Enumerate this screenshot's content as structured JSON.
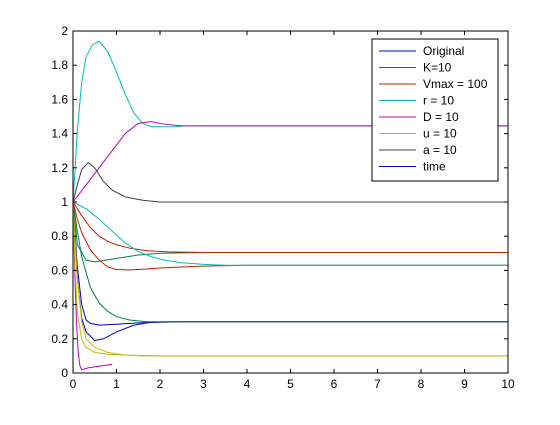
{
  "chart_data": {
    "type": "line",
    "title": "",
    "xlabel": "",
    "ylabel": "",
    "xlim": [
      0,
      10
    ],
    "ylim": [
      0,
      2
    ],
    "grid": false,
    "legend_position": "top-right",
    "x_ticks": [
      "0",
      "1",
      "2",
      "3",
      "4",
      "5",
      "6",
      "7",
      "8",
      "9",
      "10"
    ],
    "y_ticks": [
      "0",
      "0.2",
      "0.4",
      "0.6",
      "0.8",
      "1",
      "1.2",
      "1.4",
      "1.6",
      "1.8",
      "2"
    ],
    "series": [
      {
        "name": "Original",
        "color": "#0000bf",
        "curves": [
          [
            [
              0,
              1
            ],
            [
              0.1,
              0.62
            ],
            [
              0.2,
              0.4
            ],
            [
              0.3,
              0.31
            ],
            [
              0.4,
              0.29
            ],
            [
              0.6,
              0.28
            ],
            [
              1.0,
              0.285
            ],
            [
              1.5,
              0.293
            ],
            [
              2.0,
              0.297
            ],
            [
              2.5,
              0.3
            ],
            [
              10,
              0.3
            ]
          ],
          [
            [
              0,
              1
            ],
            [
              0.1,
              0.55
            ],
            [
              0.2,
              0.32
            ],
            [
              0.3,
              0.24
            ],
            [
              0.5,
              0.19
            ],
            [
              0.7,
              0.2
            ],
            [
              1.0,
              0.24
            ],
            [
              1.4,
              0.28
            ],
            [
              1.8,
              0.297
            ],
            [
              2.2,
              0.3
            ],
            [
              10,
              0.3
            ]
          ]
        ]
      },
      {
        "name": "K=10",
        "color": "#00803f",
        "curves": [
          [
            [
              0,
              1
            ],
            [
              0.1,
              0.75
            ],
            [
              0.3,
              0.66
            ],
            [
              0.5,
              0.65
            ],
            [
              1.0,
              0.67
            ],
            [
              1.5,
              0.69
            ],
            [
              2.0,
              0.7
            ],
            [
              3.0,
              0.705
            ],
            [
              10,
              0.705
            ]
          ],
          [
            [
              0,
              1
            ],
            [
              0.1,
              0.83
            ],
            [
              0.2,
              0.68
            ],
            [
              0.4,
              0.5
            ],
            [
              0.6,
              0.41
            ],
            [
              0.8,
              0.36
            ],
            [
              1.0,
              0.33
            ],
            [
              1.3,
              0.31
            ],
            [
              1.7,
              0.3
            ],
            [
              2.2,
              0.3
            ],
            [
              10,
              0.3
            ]
          ]
        ]
      },
      {
        "name": "Vmax = 100",
        "color": "#bf2000",
        "curves": [
          [
            [
              0,
              1
            ],
            [
              0.2,
              0.92
            ],
            [
              0.4,
              0.85
            ],
            [
              0.6,
              0.8
            ],
            [
              0.8,
              0.77
            ],
            [
              1.0,
              0.75
            ],
            [
              1.3,
              0.73
            ],
            [
              1.7,
              0.715
            ],
            [
              2.2,
              0.708
            ],
            [
              3.0,
              0.705
            ],
            [
              10,
              0.705
            ]
          ],
          [
            [
              0,
              1
            ],
            [
              0.1,
              0.9
            ],
            [
              0.2,
              0.82
            ],
            [
              0.4,
              0.72
            ],
            [
              0.6,
              0.66
            ],
            [
              0.8,
              0.62
            ],
            [
              1.0,
              0.605
            ],
            [
              1.3,
              0.603
            ],
            [
              1.6,
              0.607
            ],
            [
              2.0,
              0.614
            ],
            [
              2.5,
              0.62
            ],
            [
              3.0,
              0.625
            ],
            [
              4.0,
              0.63
            ],
            [
              10,
              0.63
            ]
          ]
        ]
      },
      {
        "name": "r = 10",
        "color": "#00bfbf",
        "curves": [
          [
            [
              0,
              1
            ],
            [
              0.05,
              1.2
            ],
            [
              0.1,
              1.42
            ],
            [
              0.2,
              1.7
            ],
            [
              0.3,
              1.85
            ],
            [
              0.45,
              1.92
            ],
            [
              0.6,
              1.94
            ],
            [
              0.8,
              1.88
            ],
            [
              1.0,
              1.76
            ],
            [
              1.2,
              1.63
            ],
            [
              1.4,
              1.52
            ],
            [
              1.6,
              1.46
            ],
            [
              1.8,
              1.44
            ],
            [
              2.0,
              1.44
            ],
            [
              2.3,
              1.44
            ],
            [
              2.6,
              1.445
            ],
            [
              10,
              1.445
            ]
          ],
          [
            [
              0,
              1
            ],
            [
              0.3,
              0.96
            ],
            [
              0.6,
              0.9
            ],
            [
              0.9,
              0.83
            ],
            [
              1.2,
              0.76
            ],
            [
              1.5,
              0.71
            ],
            [
              1.8,
              0.68
            ],
            [
              2.1,
              0.66
            ],
            [
              2.5,
              0.645
            ],
            [
              3.0,
              0.635
            ],
            [
              3.5,
              0.63
            ],
            [
              10,
              0.63
            ]
          ]
        ]
      },
      {
        "name": "D = 10",
        "color": "#bf00bf",
        "curves": [
          [
            [
              0,
              1
            ],
            [
              0.3,
              1.1
            ],
            [
              0.6,
              1.2
            ],
            [
              0.9,
              1.3
            ],
            [
              1.2,
              1.4
            ],
            [
              1.5,
              1.46
            ],
            [
              1.8,
              1.47
            ],
            [
              2.1,
              1.455
            ],
            [
              2.5,
              1.446
            ],
            [
              3.0,
              1.445
            ],
            [
              10,
              1.445
            ]
          ],
          [
            [
              0,
              1
            ],
            [
              0.04,
              0.6
            ],
            [
              0.08,
              0.3
            ],
            [
              0.12,
              0.12
            ],
            [
              0.16,
              0.04
            ],
            [
              0.2,
              0.02
            ],
            [
              0.35,
              0.03
            ],
            [
              0.6,
              0.04
            ],
            [
              0.9,
              0.05
            ]
          ]
        ]
      },
      {
        "name": "u = 10",
        "color": "#bfbf00",
        "curves": [
          [
            [
              0,
              1
            ],
            [
              0.05,
              0.6
            ],
            [
              0.1,
              0.35
            ],
            [
              0.2,
              0.2
            ],
            [
              0.3,
              0.15
            ],
            [
              0.5,
              0.12
            ],
            [
              0.8,
              0.11
            ],
            [
              1.2,
              0.105
            ],
            [
              2.0,
              0.1
            ],
            [
              10,
              0.1
            ]
          ],
          [
            [
              0,
              1
            ],
            [
              0.1,
              0.55
            ],
            [
              0.2,
              0.3
            ],
            [
              0.3,
              0.2
            ],
            [
              0.5,
              0.15
            ],
            [
              0.8,
              0.12
            ],
            [
              1.2,
              0.105
            ],
            [
              1.6,
              0.1
            ],
            [
              2.0,
              0.1
            ],
            [
              10,
              0.1
            ]
          ]
        ]
      },
      {
        "name": "a = 10",
        "color": "#404040",
        "curves": [
          [
            [
              0,
              1
            ],
            [
              0.1,
              1.1
            ],
            [
              0.2,
              1.19
            ],
            [
              0.35,
              1.23
            ],
            [
              0.5,
              1.2
            ],
            [
              0.7,
              1.12
            ],
            [
              0.9,
              1.07
            ],
            [
              1.2,
              1.03
            ],
            [
              1.6,
              1.01
            ],
            [
              2.0,
              1.0
            ],
            [
              10,
              1.0
            ]
          ]
        ]
      },
      {
        "name": "time",
        "color": "#0000bf",
        "curves": []
      }
    ]
  }
}
